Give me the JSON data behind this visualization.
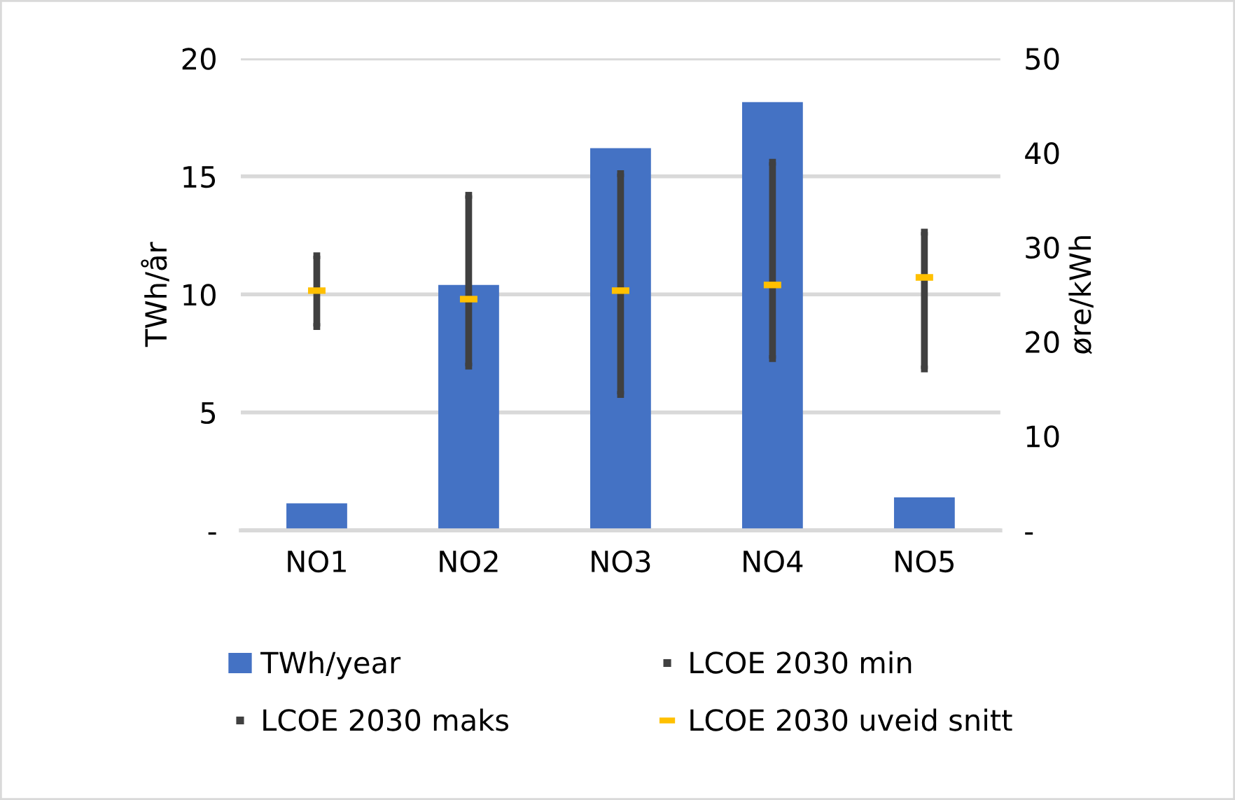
{
  "chart_data": {
    "type": "bar",
    "categories": [
      "NO1",
      "NO2",
      "NO3",
      "NO4",
      "NO5"
    ],
    "ylabel": "TWh/år",
    "y2label": "øre/kWh",
    "ylim": [
      0,
      20
    ],
    "yticks": [
      {
        "value": 0,
        "label": "-"
      },
      5,
      10,
      15,
      20
    ],
    "y2lim": [
      0,
      50
    ],
    "y2ticks": [
      {
        "value": 0,
        "label": "-"
      },
      10,
      20,
      30,
      40,
      50
    ],
    "grid": "y",
    "legend": "bottom",
    "series": [
      {
        "name": "TWh/year",
        "color": "#4472c4",
        "values": [
          1.15,
          10.4,
          16.2,
          18.15,
          1.4
        ]
      },
      {
        "name": "LCOE 2030 min",
        "type": "scatter",
        "axis": "y2",
        "marker": "square",
        "color": "#404040",
        "values": [
          21.6,
          17.4,
          14.4,
          18.2,
          17.1
        ]
      },
      {
        "name": "LCOE 2030 maks",
        "type": "scatter",
        "axis": "y2",
        "marker": "square",
        "color": "#404040",
        "values": [
          29.1,
          35.5,
          37.8,
          39.0,
          31.6
        ]
      },
      {
        "name": "LCOE 2030 uveid snitt",
        "type": "scatter",
        "axis": "y2",
        "marker": "square",
        "color": "#ffc000",
        "values": [
          25.4,
          24.5,
          25.4,
          26.0,
          26.8
        ]
      }
    ]
  }
}
